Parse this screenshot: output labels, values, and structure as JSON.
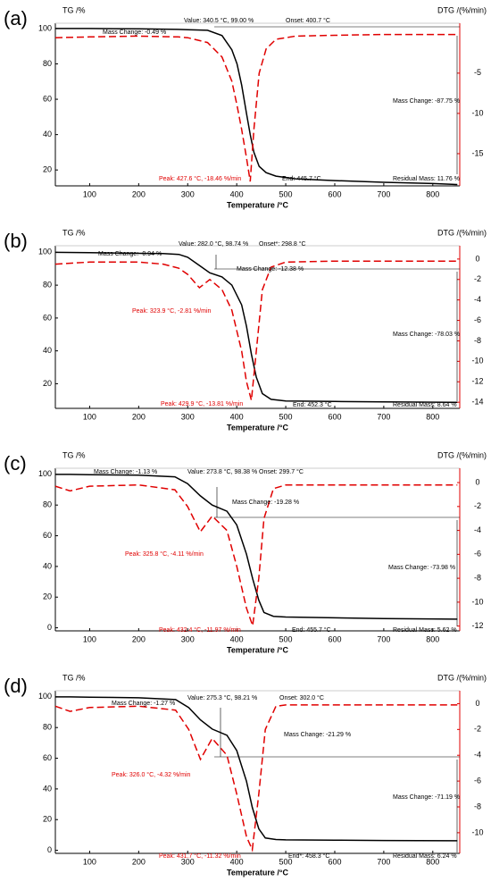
{
  "chart_data": [
    {
      "type": "line",
      "label": "(a)",
      "ylabel": "TG /%",
      "y2label": "DTG /(%/min)",
      "xlabel": "Temperature /°C",
      "xlim": [
        30,
        855
      ],
      "xticks": [
        100,
        200,
        300,
        400,
        500,
        600,
        700,
        800
      ],
      "ylim": [
        11,
        103
      ],
      "yticks": [
        20,
        40,
        60,
        80,
        100
      ],
      "y2lim": [
        -19,
        1.2
      ],
      "y2ticks": [
        -5,
        -10,
        -15
      ],
      "x": [
        30,
        100,
        200,
        280,
        300,
        340.5,
        370,
        390,
        400.7,
        410,
        420,
        427.6,
        435,
        445.7,
        460,
        480,
        520,
        600,
        700,
        800,
        850
      ],
      "series": [
        {
          "color": "#000000",
          "values": [
            100,
            100,
            99.8,
            99.5,
            99.3,
            99,
            96,
            88,
            80,
            68,
            52,
            40,
            30,
            22,
            18.5,
            16.5,
            15,
            14,
            13,
            12.3,
            11.76
          ]
        },
        {
          "color": "#e00000",
          "axis": "y2",
          "dashed": true,
          "values": [
            -0.6,
            -0.5,
            -0.4,
            -0.5,
            -0.6,
            -1.2,
            -3,
            -6,
            -9,
            -12,
            -15.5,
            -18.46,
            -12,
            -5,
            -2,
            -0.8,
            -0.4,
            -0.3,
            -0.2,
            -0.2,
            -0.2
          ]
        }
      ],
      "annotations": [
        {
          "text": "Mass Change: -0.49 %",
          "color": "#000000"
        },
        {
          "text": "Value: 340.5 °C, 99.00 %",
          "color": "#000000"
        },
        {
          "text": "Onset: 400.7 °C",
          "color": "#000000"
        },
        {
          "text": "Mass Change: -87.75 %",
          "color": "#000000"
        },
        {
          "text": "Peak: 427.6 °C, -18.46 %/min",
          "color": "#e00000"
        },
        {
          "text": "End: 445.7 °C",
          "color": "#000000"
        },
        {
          "text": "Residual Mass: 11.76 %",
          "color": "#000000"
        }
      ]
    },
    {
      "type": "line",
      "label": "(b)",
      "ylabel": "TG /%",
      "y2label": "DTG /(%/min)",
      "xlabel": "Temperature /°C",
      "xlim": [
        30,
        855
      ],
      "xticks": [
        100,
        200,
        300,
        400,
        500,
        600,
        700,
        800
      ],
      "ylim": [
        5,
        104
      ],
      "yticks": [
        20,
        40,
        60,
        80,
        100
      ],
      "y2lim": [
        -14.6,
        1.3
      ],
      "y2ticks": [
        0,
        -2,
        -4,
        -6,
        -8,
        -10,
        -12,
        -14
      ],
      "x": [
        30,
        100,
        200,
        250,
        282,
        300,
        323.9,
        345,
        370,
        390,
        410,
        420,
        429.9,
        440,
        452.3,
        470,
        500,
        600,
        700,
        850
      ],
      "series": [
        {
          "color": "#000000",
          "values": [
            100,
            99.8,
            99.4,
            99.2,
            98.74,
            97,
            92,
            87.5,
            85,
            80,
            68,
            55,
            38,
            24,
            14,
            10.5,
            9.5,
            9.2,
            8.9,
            8.64
          ]
        },
        {
          "color": "#e00000",
          "axis": "y2",
          "dashed": true,
          "values": [
            -0.5,
            -0.3,
            -0.3,
            -0.5,
            -0.9,
            -1.5,
            -2.81,
            -2,
            -3,
            -5,
            -9,
            -12,
            -13.81,
            -9,
            -3,
            -0.8,
            -0.3,
            -0.2,
            -0.2,
            -0.2
          ]
        }
      ],
      "annotations": [
        {
          "text": "Mass Change: -0.94 %",
          "color": "#000000"
        },
        {
          "text": "Value: 282.0 °C, 98.74 %",
          "color": "#000000"
        },
        {
          "text": "Onset*: 298.8 °C",
          "color": "#000000"
        },
        {
          "text": "Mass Change: -12.38 %",
          "color": "#000000"
        },
        {
          "text": "Peak: 323.9 °C, -2.81 %/min",
          "color": "#e00000"
        },
        {
          "text": "Mass Change: -78.03 %",
          "color": "#000000"
        },
        {
          "text": "Peak: 429.9 °C, -13.81 %/min",
          "color": "#e00000"
        },
        {
          "text": "End: 452.3 °C",
          "color": "#000000"
        },
        {
          "text": "Residual Mass: 8.64 %",
          "color": "#000000"
        }
      ]
    },
    {
      "type": "line",
      "label": "(c)",
      "ylabel": "TG /%",
      "y2label": "DTG /(%/min)",
      "xlabel": "Temperature /°C",
      "xlim": [
        30,
        855
      ],
      "xticks": [
        100,
        200,
        300,
        400,
        500,
        600,
        700,
        800
      ],
      "ylim": [
        -2,
        104
      ],
      "yticks": [
        0,
        20,
        40,
        60,
        80,
        100
      ],
      "y2lim": [
        -12.4,
        1.2
      ],
      "y2ticks": [
        0,
        -2,
        -4,
        -6,
        -8,
        -10,
        -12
      ],
      "x": [
        30,
        60,
        100,
        200,
        273.8,
        299.7,
        325.8,
        350,
        380,
        400,
        420,
        432.4,
        445,
        455.7,
        475,
        500,
        600,
        700,
        850
      ],
      "series": [
        {
          "color": "#000000",
          "values": [
            100,
            100,
            99.8,
            99.5,
            98.38,
            94,
            86,
            80,
            76,
            67,
            48,
            32,
            18,
            10,
            7.5,
            7,
            6.5,
            6,
            5.62
          ]
        },
        {
          "color": "#e00000",
          "axis": "y2",
          "dashed": true,
          "values": [
            -0.3,
            -0.7,
            -0.3,
            -0.2,
            -0.6,
            -2,
            -4.11,
            -2.8,
            -4,
            -7,
            -10.5,
            -11.97,
            -8,
            -3,
            -0.5,
            -0.2,
            -0.2,
            -0.2,
            -0.2
          ]
        }
      ],
      "annotations": [
        {
          "text": "Mass Change: -1.13 %",
          "color": "#000000"
        },
        {
          "text": "Value: 273.8 °C, 98.38 %",
          "color": "#000000"
        },
        {
          "text": "Onset: 299.7 °C",
          "color": "#000000"
        },
        {
          "text": "Mass Change: -19.28 %",
          "color": "#000000"
        },
        {
          "text": "Peak: 325.8 °C, -4.11 %/min",
          "color": "#e00000"
        },
        {
          "text": "Mass Change: -73.98 %",
          "color": "#000000"
        },
        {
          "text": "Peak: 432.4 °C, -11.97 %/min",
          "color": "#e00000"
        },
        {
          "text": "End: 455.7 °C",
          "color": "#000000"
        },
        {
          "text": "Residual Mass: 5.62 %",
          "color": "#000000"
        }
      ]
    },
    {
      "type": "line",
      "label": "(d)",
      "ylabel": "TG /%",
      "y2label": "DTG /(%/min)",
      "xlabel": "Temperature /°C",
      "xlim": [
        30,
        855
      ],
      "xticks": [
        100,
        200,
        300,
        400,
        500,
        600,
        700,
        800
      ],
      "ylim": [
        -2,
        104
      ],
      "yticks": [
        0,
        20,
        40,
        60,
        80,
        100
      ],
      "y2lim": [
        -11.6,
        1.0
      ],
      "y2ticks": [
        0,
        -2,
        -4,
        -6,
        -8,
        -10
      ],
      "x": [
        30,
        60,
        100,
        200,
        275.3,
        302,
        326,
        350,
        380,
        400,
        420,
        431.7,
        445,
        458.3,
        480,
        500,
        600,
        700,
        850
      ],
      "series": [
        {
          "color": "#000000",
          "values": [
            100,
            100,
            99.8,
            99.4,
            98.21,
            93,
            85,
            79,
            75,
            65,
            45,
            28,
            14,
            8,
            7,
            6.8,
            6.6,
            6.4,
            6.24
          ]
        },
        {
          "color": "#e00000",
          "axis": "y2",
          "dashed": true,
          "values": [
            -0.2,
            -0.6,
            -0.3,
            -0.2,
            -0.5,
            -2,
            -4.32,
            -2.7,
            -4,
            -7,
            -10.3,
            -11.32,
            -7,
            -2,
            -0.2,
            -0.1,
            -0.1,
            -0.1,
            -0.1
          ]
        }
      ],
      "annotations": [
        {
          "text": "Mass Change: -1.27 %",
          "color": "#000000"
        },
        {
          "text": "Value: 275.3 °C, 98.21 %",
          "color": "#000000"
        },
        {
          "text": "Onset: 302.0 °C",
          "color": "#000000"
        },
        {
          "text": "Mass Change: -21.29 %",
          "color": "#000000"
        },
        {
          "text": "Peak: 326.0 °C, -4.32 %/min",
          "color": "#e00000"
        },
        {
          "text": "Mass Change: -71.19 %",
          "color": "#000000"
        },
        {
          "text": "Peak: 431.7 °C, -11.32 %/min",
          "color": "#e00000"
        },
        {
          "text": "End*: 458.3 °C",
          "color": "#000000"
        },
        {
          "text": "Residual Mass: 6.24 %",
          "color": "#000000"
        }
      ]
    }
  ]
}
